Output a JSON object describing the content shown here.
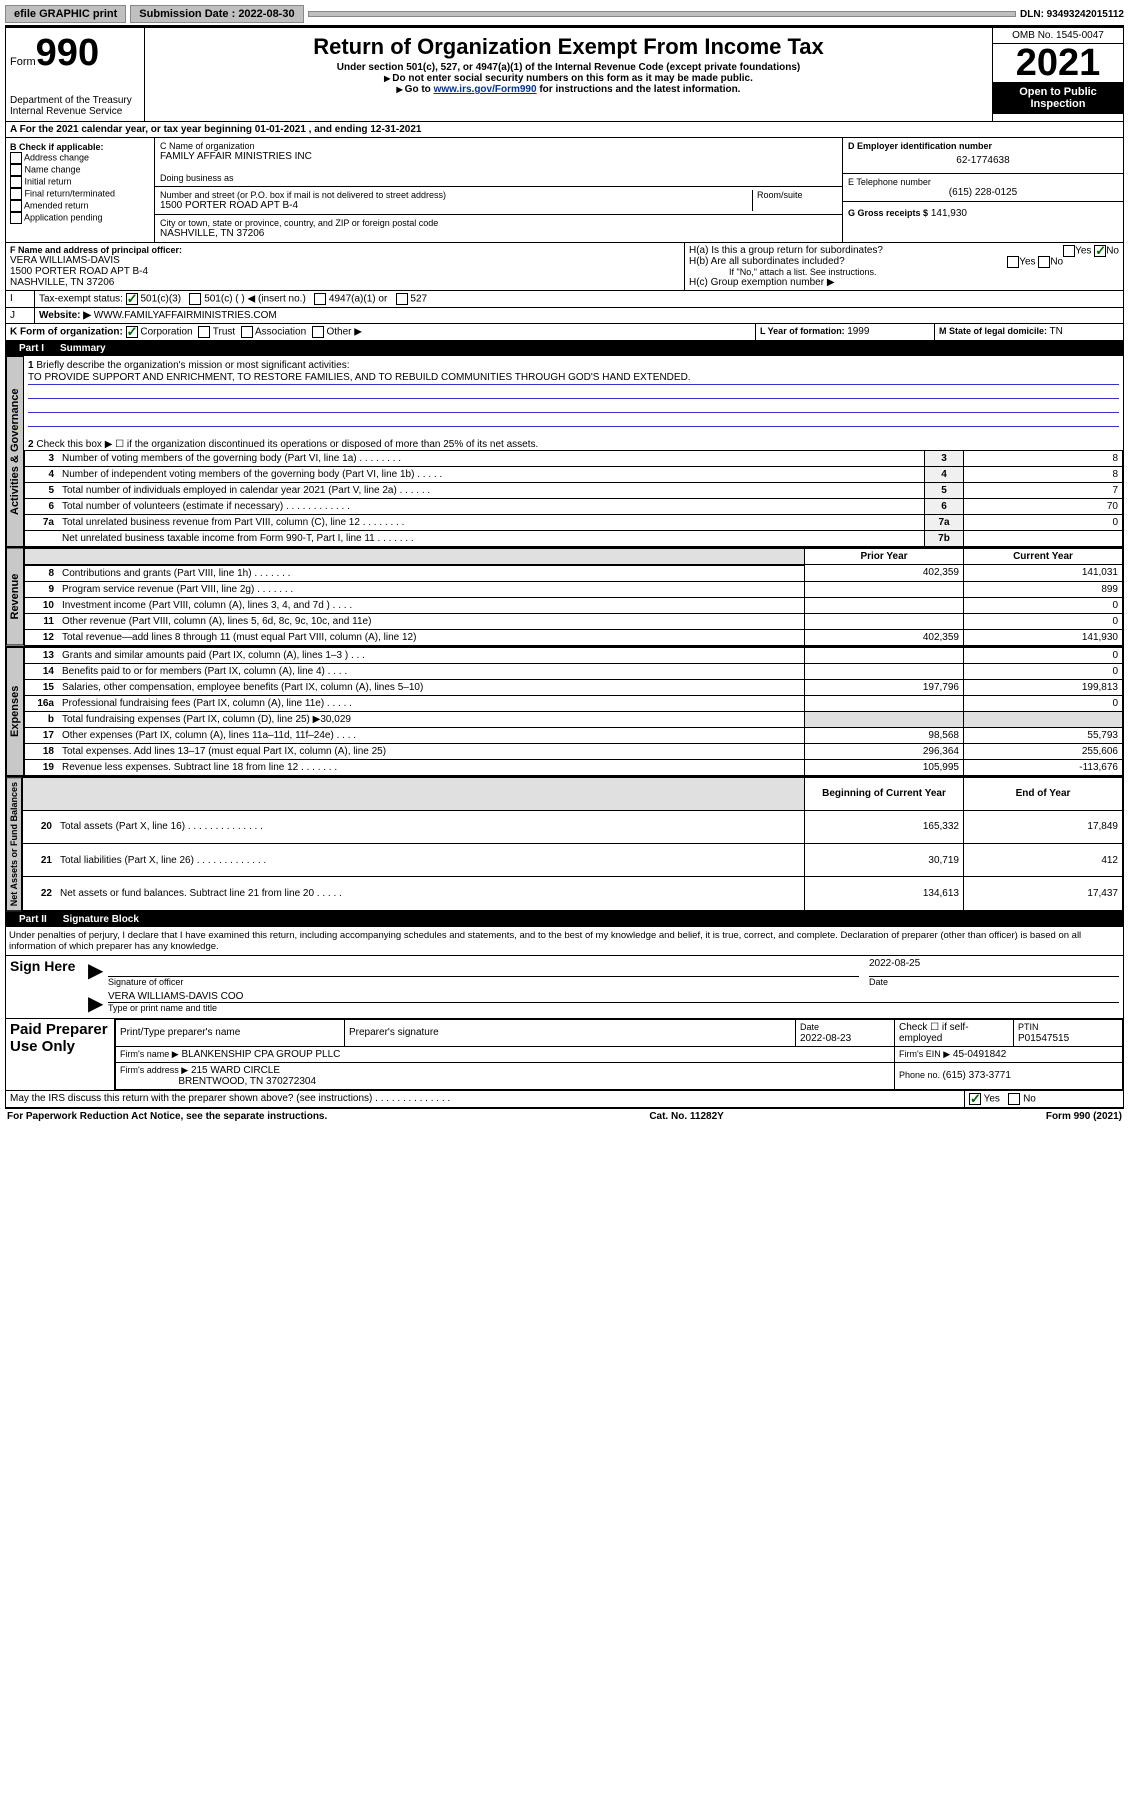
{
  "topbar": {
    "efile": "efile GRAPHIC print",
    "submission_label": "Submission Date : 2022-08-30",
    "dln": "DLN: 93493242015112"
  },
  "header": {
    "form_prefix": "Form",
    "form_number": "990",
    "dept": "Department of the Treasury",
    "irs": "Internal Revenue Service",
    "title": "Return of Organization Exempt From Income Tax",
    "sub1": "Under section 501(c), 527, or 4947(a)(1) of the Internal Revenue Code (except private foundations)",
    "sub2": "Do not enter social security numbers on this form as it may be made public.",
    "sub3_prefix": "Go to ",
    "sub3_link": "www.irs.gov/Form990",
    "sub3_suffix": " for instructions and the latest information.",
    "omb": "OMB No. 1545-0047",
    "year": "2021",
    "inspection": "Open to Public Inspection"
  },
  "period": {
    "text": "A For the 2021 calendar year, or tax year beginning 01-01-2021   , and ending 12-31-2021"
  },
  "sectionB": {
    "label": "B Check if applicable:",
    "opts": [
      "Address change",
      "Name change",
      "Initial return",
      "Final return/terminated",
      "Amended return",
      "Application pending"
    ],
    "c_label": "C Name of organization",
    "org_name": "FAMILY AFFAIR MINISTRIES INC",
    "dba_label": "Doing business as",
    "street_label": "Number and street (or P.O. box if mail is not delivered to street address)",
    "room_label": "Room/suite",
    "street": "1500 PORTER ROAD APT B-4",
    "city_label": "City or town, state or province, country, and ZIP or foreign postal code",
    "city": "NASHVILLE, TN  37206",
    "d_label": "D Employer identification number",
    "ein": "62-1774638",
    "e_label": "E Telephone number",
    "phone": "(615) 228-0125",
    "g_label": "G Gross receipts $",
    "gross": "141,930"
  },
  "sectionF": {
    "label": "F Name and address of principal officer:",
    "name": "VERA WILLIAMS-DAVIS",
    "addr1": "1500 PORTER ROAD APT B-4",
    "addr2": "NASHVILLE, TN  37206",
    "ha": "H(a)  Is this a group return for subordinates?",
    "hb": "H(b)  Are all subordinates included?",
    "hb_note": "If \"No,\" attach a list. See instructions.",
    "hc": "H(c)  Group exemption number ▶"
  },
  "sectionI": {
    "label": "Tax-exempt status:",
    "opt1": "501(c)(3)",
    "opt2": "501(c) (  ) ◀ (insert no.)",
    "opt3": "4947(a)(1) or",
    "opt4": "527"
  },
  "sectionJ": {
    "label": "Website: ▶",
    "value": "WWW.FAMILYAFFAIRMINISTRIES.COM"
  },
  "sectionK": {
    "label": "K Form of organization:",
    "opts": [
      "Corporation",
      "Trust",
      "Association",
      "Other ▶"
    ],
    "l_label": "L Year of formation: ",
    "l_value": "1999",
    "m_label": "M State of legal domicile: ",
    "m_value": "TN"
  },
  "part1": {
    "title": "Part I",
    "heading": "Summary",
    "q1": "Briefly describe the organization's mission or most significant activities:",
    "mission": "TO PROVIDE SUPPORT AND ENRICHMENT, TO RESTORE FAMILIES, AND TO REBUILD COMMUNITIES THROUGH GOD'S HAND EXTENDED.",
    "q2": "Check this box ▶ ☐  if the organization discontinued its operations or disposed of more than 25% of its net assets.",
    "governance_tab": "Activities & Governance",
    "revenue_tab": "Revenue",
    "expenses_tab": "Expenses",
    "netassets_tab": "Net Assets or Fund Balances",
    "lines_gov": [
      {
        "n": "3",
        "d": "Number of voting members of the governing body (Part VI, line 1a)  .  .  .  .  .  .  .  .",
        "ref": "3",
        "v": "8"
      },
      {
        "n": "4",
        "d": "Number of independent voting members of the governing body (Part VI, line 1b)  .  .  .  .  .",
        "ref": "4",
        "v": "8"
      },
      {
        "n": "5",
        "d": "Total number of individuals employed in calendar year 2021 (Part V, line 2a)  .  .  .  .  .  .",
        "ref": "5",
        "v": "7"
      },
      {
        "n": "6",
        "d": "Total number of volunteers (estimate if necessary)  .  .  .  .  .  .  .  .  .  .  .  .",
        "ref": "6",
        "v": "70"
      },
      {
        "n": "7a",
        "d": "Total unrelated business revenue from Part VIII, column (C), line 12  .  .  .  .  .  .  .  .",
        "ref": "7a",
        "v": "0"
      },
      {
        "n": "",
        "d": "Net unrelated business taxable income from Form 990-T, Part I, line 11  .  .  .  .  .  .  .",
        "ref": "7b",
        "v": ""
      }
    ],
    "col_prior": "Prior Year",
    "col_current": "Current Year",
    "col_boy": "Beginning of Current Year",
    "col_eoy": "End of Year",
    "lines_rev": [
      {
        "n": "8",
        "d": "Contributions and grants (Part VIII, line 1h)  .  .  .  .  .  .  .",
        "p": "402,359",
        "c": "141,031"
      },
      {
        "n": "9",
        "d": "Program service revenue (Part VIII, line 2g)  .  .  .  .  .  .  .",
        "p": "",
        "c": "899"
      },
      {
        "n": "10",
        "d": "Investment income (Part VIII, column (A), lines 3, 4, and 7d )  .  .  .  .",
        "p": "",
        "c": "0"
      },
      {
        "n": "11",
        "d": "Other revenue (Part VIII, column (A), lines 5, 6d, 8c, 9c, 10c, and 11e)",
        "p": "",
        "c": "0"
      },
      {
        "n": "12",
        "d": "Total revenue—add lines 8 through 11 (must equal Part VIII, column (A), line 12)",
        "p": "402,359",
        "c": "141,930"
      }
    ],
    "lines_exp": [
      {
        "n": "13",
        "d": "Grants and similar amounts paid (Part IX, column (A), lines 1–3 )  .  .  .",
        "p": "",
        "c": "0"
      },
      {
        "n": "14",
        "d": "Benefits paid to or for members (Part IX, column (A), line 4)  .  .  .  .",
        "p": "",
        "c": "0"
      },
      {
        "n": "15",
        "d": "Salaries, other compensation, employee benefits (Part IX, column (A), lines 5–10)",
        "p": "197,796",
        "c": "199,813"
      },
      {
        "n": "16a",
        "d": "Professional fundraising fees (Part IX, column (A), line 11e)  .  .  .  .  .",
        "p": "",
        "c": "0"
      },
      {
        "n": "b",
        "d": "Total fundraising expenses (Part IX, column (D), line 25) ▶30,029",
        "p": "grey",
        "c": "grey"
      },
      {
        "n": "17",
        "d": "Other expenses (Part IX, column (A), lines 11a–11d, 11f–24e)  .  .  .  .",
        "p": "98,568",
        "c": "55,793"
      },
      {
        "n": "18",
        "d": "Total expenses. Add lines 13–17 (must equal Part IX, column (A), line 25)",
        "p": "296,364",
        "c": "255,606"
      },
      {
        "n": "19",
        "d": "Revenue less expenses. Subtract line 18 from line 12  .  .  .  .  .  .  .",
        "p": "105,995",
        "c": "-113,676"
      }
    ],
    "lines_net": [
      {
        "n": "20",
        "d": "Total assets (Part X, line 16)  .  .  .  .  .  .  .  .  .  .  .  .  .  .",
        "p": "165,332",
        "c": "17,849"
      },
      {
        "n": "21",
        "d": "Total liabilities (Part X, line 26)  .  .  .  .  .  .  .  .  .  .  .  .  .",
        "p": "30,719",
        "c": "412"
      },
      {
        "n": "22",
        "d": "Net assets or fund balances. Subtract line 21 from line 20  .  .  .  .  .",
        "p": "134,613",
        "c": "17,437"
      }
    ]
  },
  "part2": {
    "title": "Part II",
    "heading": "Signature Block",
    "declaration": "Under penalties of perjury, I declare that I have examined this return, including accompanying schedules and statements, and to the best of my knowledge and belief, it is true, correct, and complete. Declaration of preparer (other than officer) is based on all information of which preparer has any knowledge.",
    "sign_here": "Sign Here",
    "sig_officer": "Signature of officer",
    "sig_date": "2022-08-25",
    "date_label": "Date",
    "officer_name": "VERA WILLIAMS-DAVIS  COO",
    "officer_type": "Type or print name and title",
    "paid": "Paid Preparer Use Only",
    "prep_name_label": "Print/Type preparer's name",
    "prep_sig_label": "Preparer's signature",
    "prep_date_label": "Date",
    "prep_date": "2022-08-23",
    "check_label": "Check ☐ if self-employed",
    "ptin_label": "PTIN",
    "ptin": "P01547515",
    "firm_name_label": "Firm's name    ▶",
    "firm_name": "BLANKENSHIP CPA GROUP PLLC",
    "firm_ein_label": "Firm's EIN ▶",
    "firm_ein": "45-0491842",
    "firm_addr_label": "Firm's address ▶",
    "firm_addr1": "215 WARD CIRCLE",
    "firm_addr2": "BRENTWOOD, TN  370272304",
    "phone_label": "Phone no. ",
    "phone": "(615) 373-3771",
    "discuss": "May the IRS discuss this return with the preparer shown above? (see instructions)  .  .  .  .  .  .  .  .  .  .  .  .  .  .",
    "yes": "Yes",
    "no": "No"
  },
  "footer": {
    "paperwork": "For Paperwork Reduction Act Notice, see the separate instructions.",
    "catno": "Cat. No. 11282Y",
    "form": "Form 990 (2021)"
  }
}
